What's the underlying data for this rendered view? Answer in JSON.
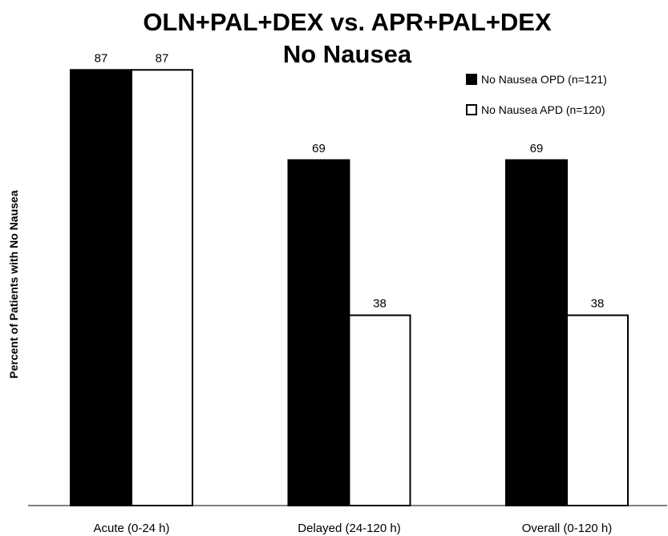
{
  "chart_data": {
    "type": "bar",
    "title": "OLN+PAL+DEX vs. APR+PAL+DEX",
    "subtitle": "No Nausea",
    "xlabel": "",
    "ylabel": "Percent of Patients with No Nausea",
    "categories": [
      "Acute (0-24 h)",
      "Delayed (24-120 h)",
      "Overall (0-120 h)"
    ],
    "series": [
      {
        "name": "No Nausea OPD (n=121)",
        "values": [
          87,
          69,
          69
        ],
        "color": "#000000"
      },
      {
        "name": "No Nausea APD (n=120)",
        "values": [
          87,
          38,
          38
        ],
        "color": "#ffffff"
      }
    ],
    "ylim": [
      0,
      100
    ],
    "grid": false,
    "legend": "top-right",
    "data_labels": true
  }
}
